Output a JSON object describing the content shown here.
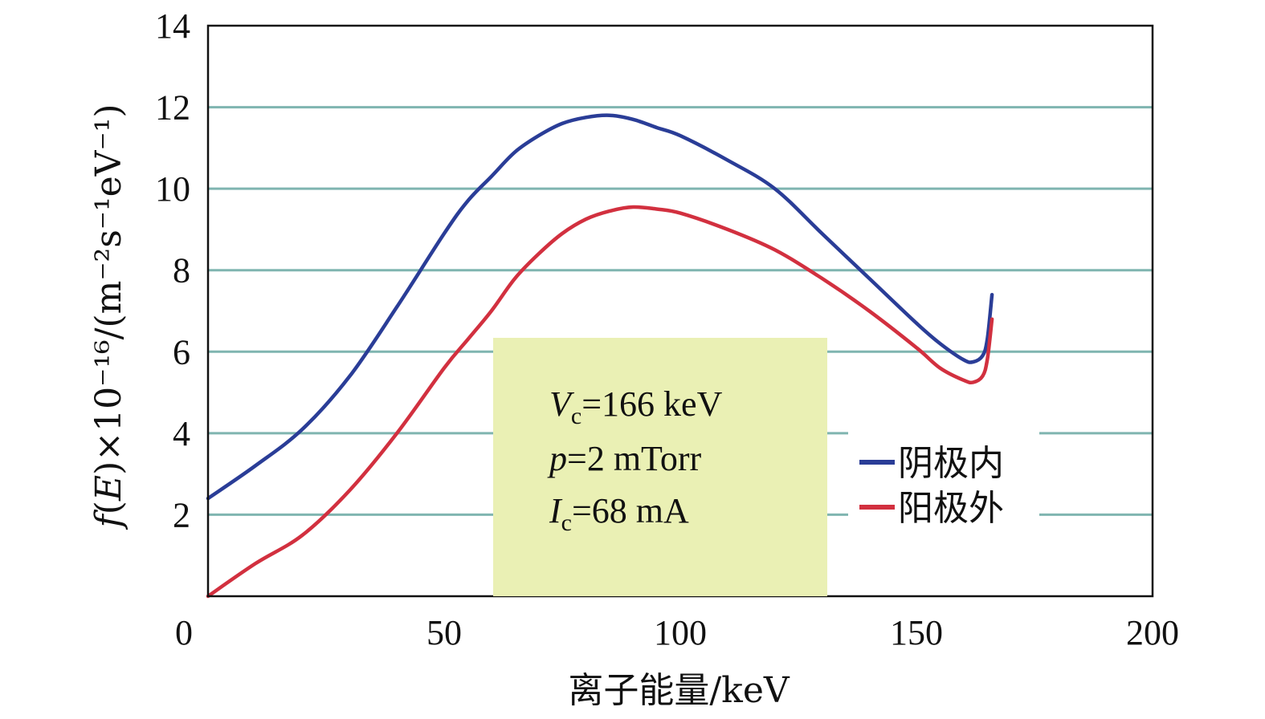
{
  "chart_data": {
    "type": "line",
    "xlabel": "离子能量/keV",
    "ylabel": "f(E)×10⁻¹⁶/(m⁻²s⁻¹eV⁻¹)",
    "ylabel_parts": {
      "f": "f",
      "E": "E",
      "rest": "×10⁻¹⁶/(m⁻²s⁻¹eV⁻¹)"
    },
    "xlim": [
      0,
      200
    ],
    "ylim": [
      0,
      14
    ],
    "x_ticks": [
      0,
      50,
      100,
      150,
      200
    ],
    "y_ticks": [
      2,
      4,
      6,
      8,
      10,
      12,
      14
    ],
    "grid": "horizontal",
    "legend_position": "right",
    "annotation": {
      "lines": [
        {
          "var": "V",
          "sub": "c",
          "value": "=166 keV"
        },
        {
          "var": "p",
          "sub": "",
          "value": "=2 mTorr"
        },
        {
          "var": "I",
          "sub": "c",
          "value": "=68 mA"
        }
      ]
    },
    "series": [
      {
        "name": "阴极内",
        "color": "#2a3d97",
        "x": [
          0,
          10,
          20,
          30,
          40,
          50,
          55,
          60,
          65,
          70,
          75,
          80,
          85,
          90,
          95,
          100,
          110,
          120,
          130,
          140,
          150,
          155,
          160,
          162,
          164,
          165,
          166
        ],
        "y": [
          2.4,
          3.2,
          4.1,
          5.4,
          7.1,
          8.9,
          9.7,
          10.3,
          10.9,
          11.3,
          11.6,
          11.75,
          11.8,
          11.7,
          11.5,
          11.3,
          10.7,
          10.0,
          8.9,
          7.8,
          6.7,
          6.2,
          5.8,
          5.75,
          5.9,
          6.3,
          7.4
        ]
      },
      {
        "name": "阳极外",
        "color": "#d2303f",
        "x": [
          0,
          10,
          20,
          30,
          40,
          50,
          55,
          60,
          65,
          70,
          75,
          80,
          85,
          90,
          95,
          100,
          110,
          120,
          130,
          140,
          150,
          155,
          160,
          162,
          164,
          165,
          166
        ],
        "y": [
          0.0,
          0.8,
          1.5,
          2.6,
          4.0,
          5.6,
          6.3,
          7.0,
          7.8,
          8.4,
          8.9,
          9.25,
          9.45,
          9.55,
          9.5,
          9.4,
          9.0,
          8.5,
          7.8,
          7.0,
          6.1,
          5.6,
          5.3,
          5.25,
          5.4,
          5.8,
          6.8
        ]
      }
    ]
  }
}
